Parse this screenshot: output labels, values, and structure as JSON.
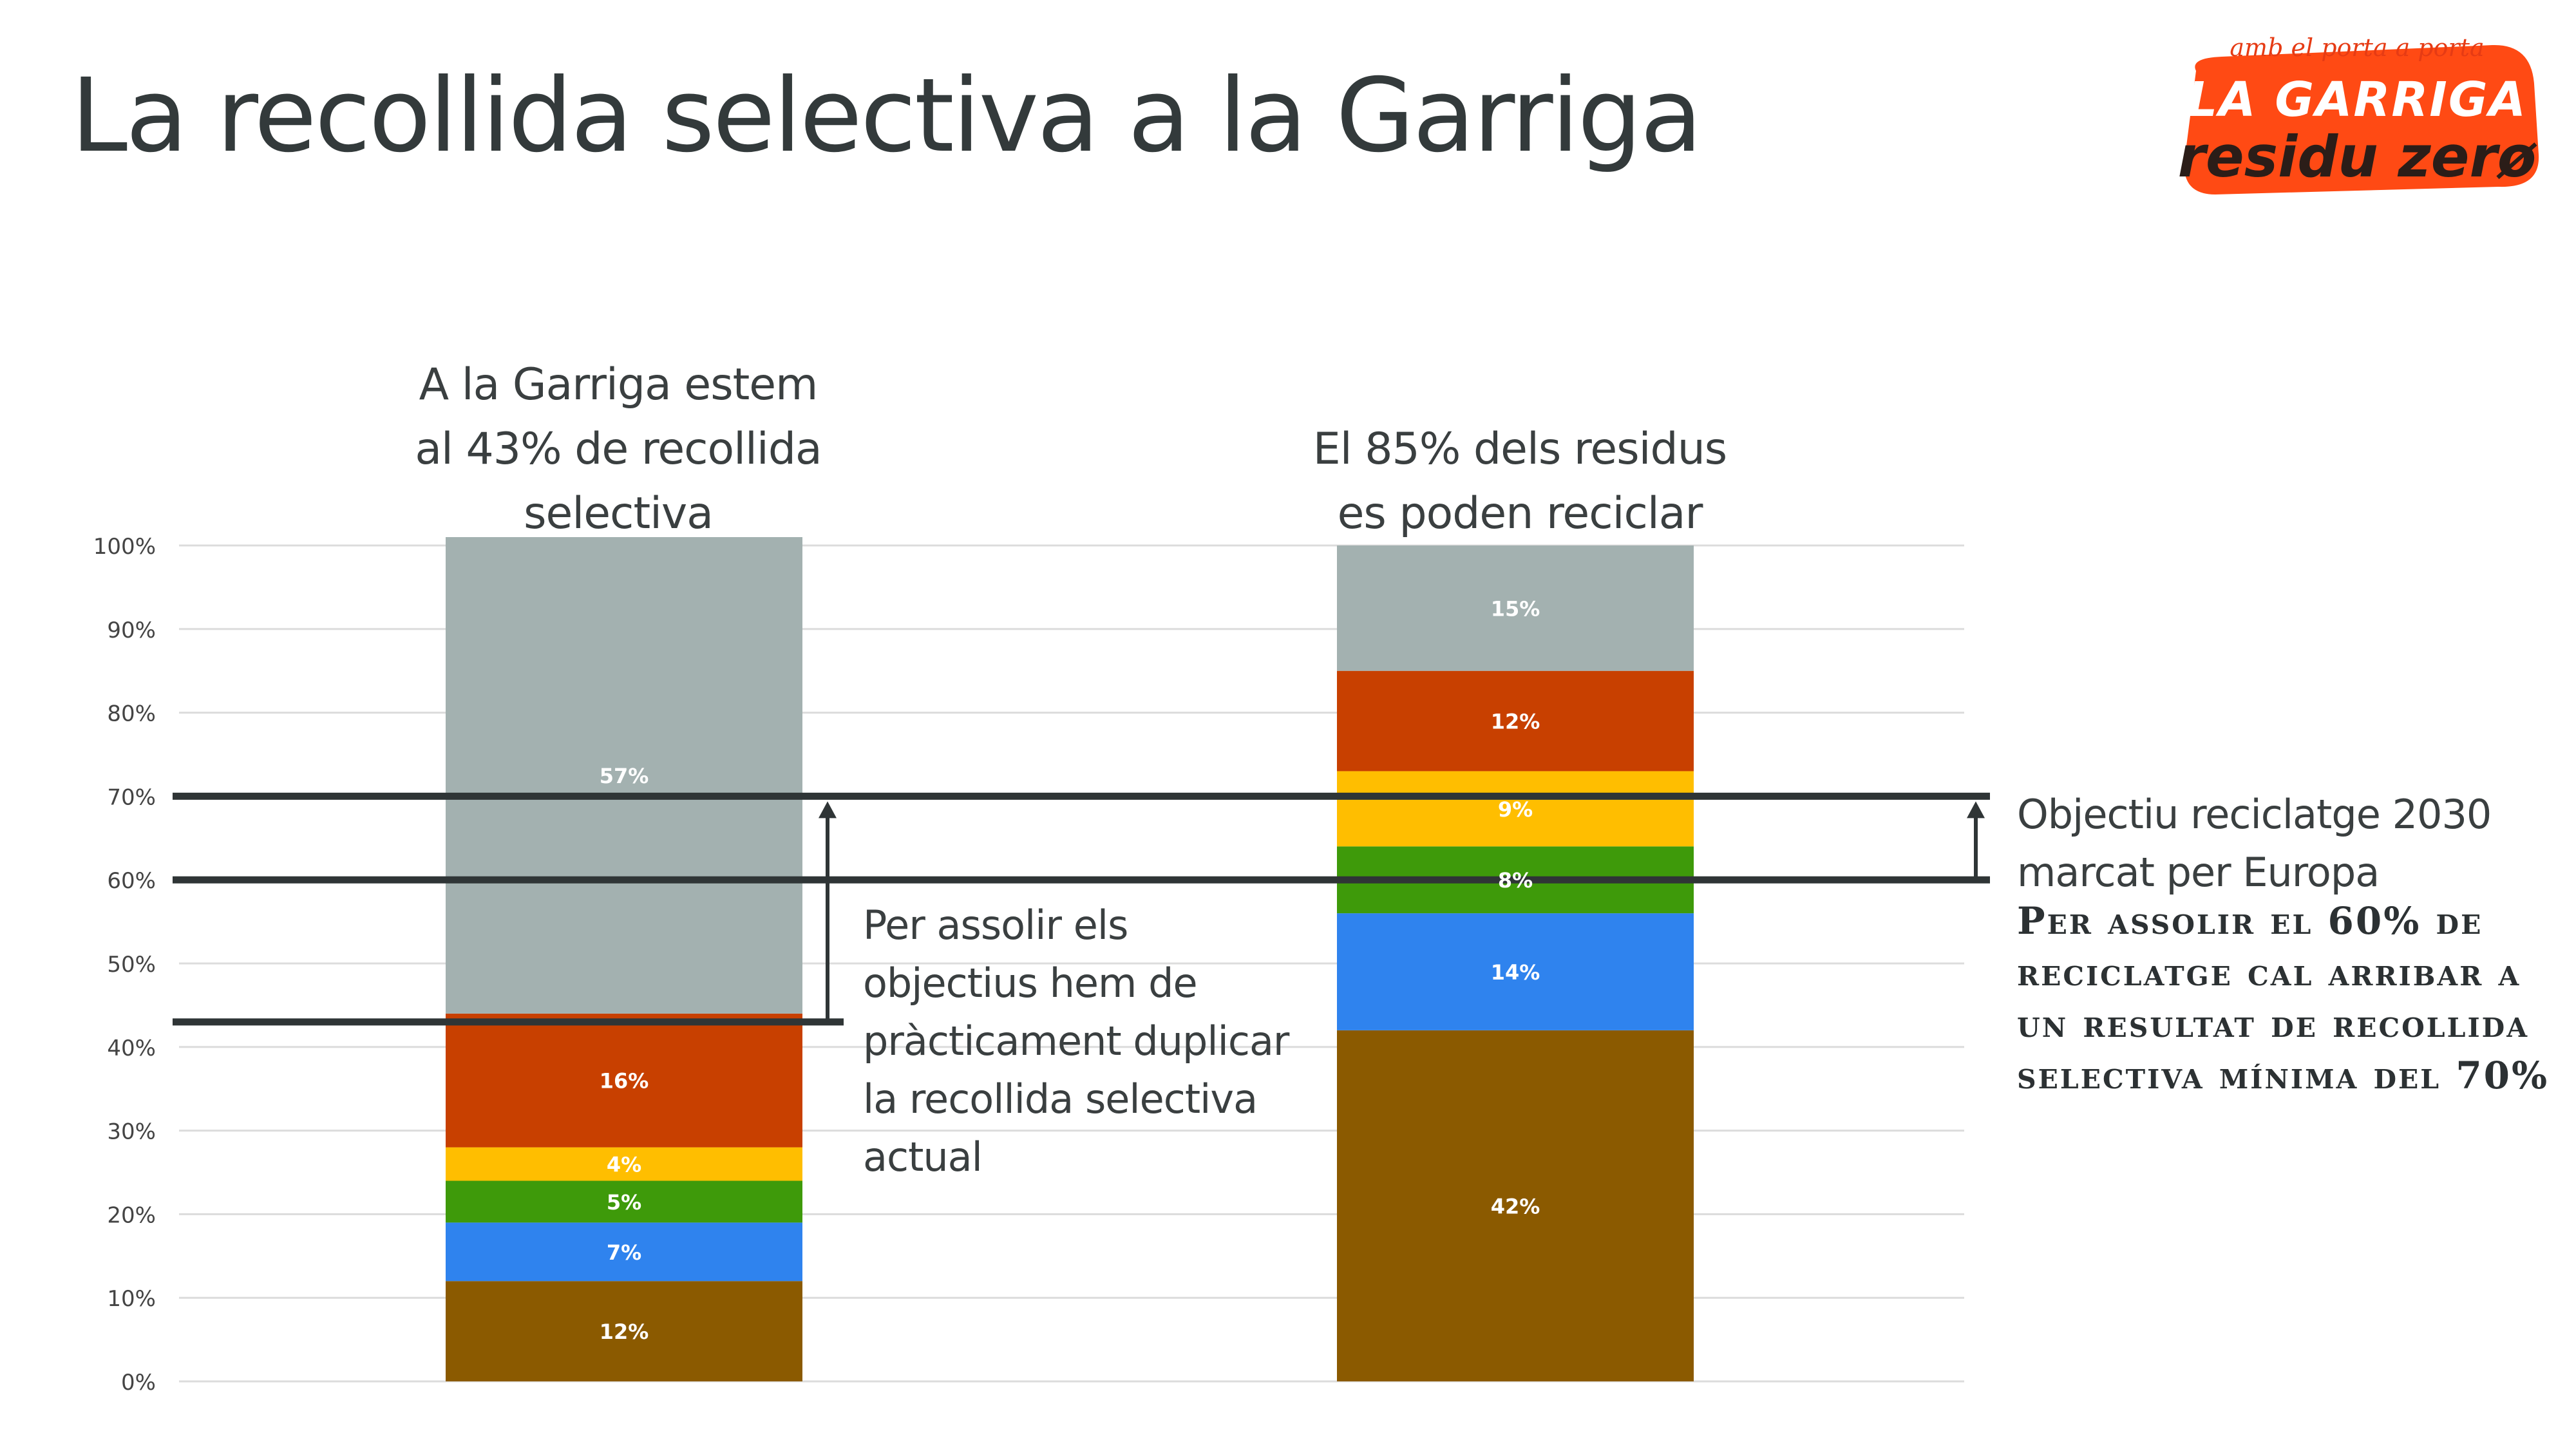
{
  "title": "La recollida selectiva a la Garriga",
  "logo": {
    "tagline": "amb el porta a porta",
    "line1": "LA GARRIGA",
    "line2": "residu zerø",
    "color": "#ff4a14"
  },
  "bar_headlines": [
    "A la Garriga estem al 43% de recollida selectiva",
    "El 85% dels residus es poden reciclar"
  ],
  "annotations": {
    "middle": "Per assolir els objectius hem de pràcticament duplicar la recollida selectiva actual",
    "right": "Objectiu reciclatge 2030 marcat per Europa",
    "right_bold": "Per assolir el 60% de reciclatge cal arribar a un resultat de recollida selectiva mínima del 70%"
  },
  "chart_data": {
    "type": "bar",
    "stacked": true,
    "categories": [
      "A la Garriga estem al 43% de recollida selectiva",
      "El 85% dels residus es poden reciclar"
    ],
    "series": [
      {
        "values": [
          12,
          42
        ],
        "labels": [
          "12%",
          "42%"
        ],
        "color": "#8b5a00"
      },
      {
        "values": [
          7,
          14
        ],
        "labels": [
          "7%",
          "14%"
        ],
        "color": "#2f83ee"
      },
      {
        "values": [
          5,
          8
        ],
        "labels": [
          "5%",
          "8%"
        ],
        "color": "#3e9a0a"
      },
      {
        "values": [
          4,
          9
        ],
        "labels": [
          "4%",
          "9%"
        ],
        "color": "#ffbe00"
      },
      {
        "values": [
          16,
          12
        ],
        "labels": [
          "16%",
          "12%"
        ],
        "color": "#c84000"
      },
      {
        "values": [
          57,
          15
        ],
        "labels": [
          "57%",
          "15%"
        ],
        "color": "#a3b1b0"
      }
    ],
    "ylim": [
      0,
      100
    ],
    "yticks": [
      "0%",
      "10%",
      "20%",
      "30%",
      "40%",
      "50%",
      "60%",
      "70%",
      "80%",
      "90%",
      "100%"
    ],
    "grid": true,
    "reference_lines": [
      70,
      60,
      43
    ],
    "arrows": [
      {
        "from": 43,
        "to": 70
      },
      {
        "from": 60,
        "to": 70
      }
    ]
  }
}
